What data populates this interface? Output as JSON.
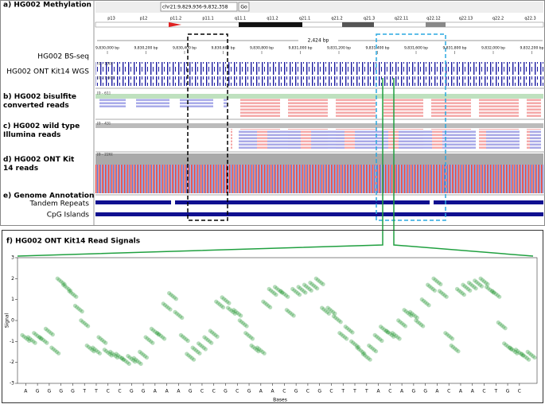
{
  "igv": {
    "locus": "chr21:9,829,936-9,832,358",
    "go": "Go",
    "bands": [
      "p13",
      "p12",
      "p11.2",
      "p11.1",
      "q11.1",
      "q11.2",
      "q21.1",
      "q21.2",
      "q21.3",
      "q22.11",
      "q22.12",
      "q22.13",
      "q22.2",
      "q22.3"
    ],
    "span": "2,424 bp",
    "coords": [
      "9,830,000 bp",
      "9,830,200 bp",
      "9,830,400 bp",
      "9,830,600 bp",
      "9,830,800 bp",
      "9,831,000 bp",
      "9,831,200 bp",
      "9,831,400 bp",
      "9,831,600 bp",
      "9,831,800 bp",
      "9,832,000 bp",
      "9,832,200 bp"
    ],
    "panels": [
      {
        "label": "a) HG002 Methylation",
        "tracks": [
          "HG002 BS-seq",
          "HG002 ONT Kit14 WGS"
        ],
        "ranges": [
          "[0 - 100]",
          "[0 - 1.00]"
        ]
      },
      {
        "label": "b) HG002 bisulfite converted reads",
        "ranges": [
          "[0 - 61]"
        ]
      },
      {
        "label": "c) HG002 wild type Illumina reads",
        "ranges": [
          "[0 - 43]"
        ]
      },
      {
        "label": "d) HG002 ONT Kit 14 reads",
        "ranges": [
          "[0 - 226]"
        ]
      },
      {
        "label": "e) Genome Annotation",
        "tracks": [
          "Tandem Repeats",
          "CpG Islands"
        ]
      }
    ]
  },
  "chart_data": {
    "type": "scatter",
    "title": "f) HG002 ONT Kit14 Read Signals",
    "x_label": "Bases",
    "y_label": "Signal",
    "categories": [
      "A",
      "G",
      "G",
      "G",
      "G",
      "T",
      "T",
      "C",
      "C",
      "G",
      "G",
      "A",
      "A",
      "A",
      "G",
      "C",
      "C",
      "G",
      "C",
      "G",
      "A",
      "A",
      "C",
      "G",
      "C",
      "G",
      "C",
      "T",
      "T",
      "T",
      "A",
      "C",
      "A",
      "G",
      "G",
      "A",
      "C",
      "A",
      "A",
      "C",
      "T",
      "G",
      "C"
    ],
    "x": [
      0,
      0.5,
      1,
      1.5,
      2,
      2.5,
      3,
      3.5,
      4,
      4.5,
      5,
      5.5,
      6,
      6.5,
      7,
      7.5,
      8,
      8.5,
      9,
      9.5,
      10,
      10.5,
      11,
      11.5,
      12,
      12.5,
      13,
      13.5,
      14,
      14.5,
      15,
      15.5,
      16,
      16.5,
      17,
      17.5,
      18,
      18.5,
      19,
      19.5,
      20,
      20.5,
      21,
      21.5,
      22,
      22.5,
      23,
      23.5,
      24,
      24.5,
      25,
      25.5,
      26,
      26.5,
      27,
      27.5,
      28,
      28.5,
      29,
      29.5,
      30,
      30.5,
      31,
      31.5,
      32,
      32.5,
      33,
      33.5,
      34,
      34.5,
      35,
      35.5,
      36,
      36.5,
      37,
      37.5,
      38,
      38.5,
      39,
      39.5,
      40,
      40.5,
      41,
      41.5,
      42,
      42.5,
      43
    ],
    "values": [
      -0.9,
      -1.0,
      -0.8,
      -1.0,
      -0.6,
      -1.5,
      1.8,
      1.5,
      1.2,
      0.5,
      -0.2,
      -1.4,
      -1.5,
      -1.0,
      -1.6,
      -1.7,
      -1.8,
      -2.0,
      -1.9,
      -2.0,
      -1.7,
      -1.0,
      -0.6,
      -0.8,
      0.6,
      1.1,
      0.2,
      -0.9,
      -1.8,
      -1.5,
      -1.3,
      -1.0,
      -0.7,
      0.7,
      0.9,
      0.4,
      0.3,
      -0.2,
      -0.8,
      -1.4,
      -1.5,
      0.7,
      1.3,
      1.4,
      1.2,
      0.3,
      1.3,
      1.4,
      1.5,
      1.6,
      1.8,
      0.4,
      0.4,
      0.0,
      -0.8,
      -0.5,
      -1.2,
      -1.5,
      -1.8,
      -1.4,
      -0.9,
      -0.5,
      -0.7,
      -0.8,
      -0.2,
      0.3,
      0.2,
      -0.2,
      0.8,
      1.5,
      1.8,
      1.2,
      -0.8,
      -1.4,
      1.3,
      1.5,
      1.6,
      1.7,
      1.8,
      1.4,
      1.2,
      -0.3,
      -1.3,
      -1.5,
      -1.6,
      -1.8,
      -1.7
    ],
    "color": "#2e9a3c",
    "xlim": [
      -0.7,
      43.5
    ],
    "ylim": [
      -3,
      3
    ],
    "yticks": [
      -3,
      -2,
      -1,
      0,
      1,
      2,
      3
    ]
  }
}
